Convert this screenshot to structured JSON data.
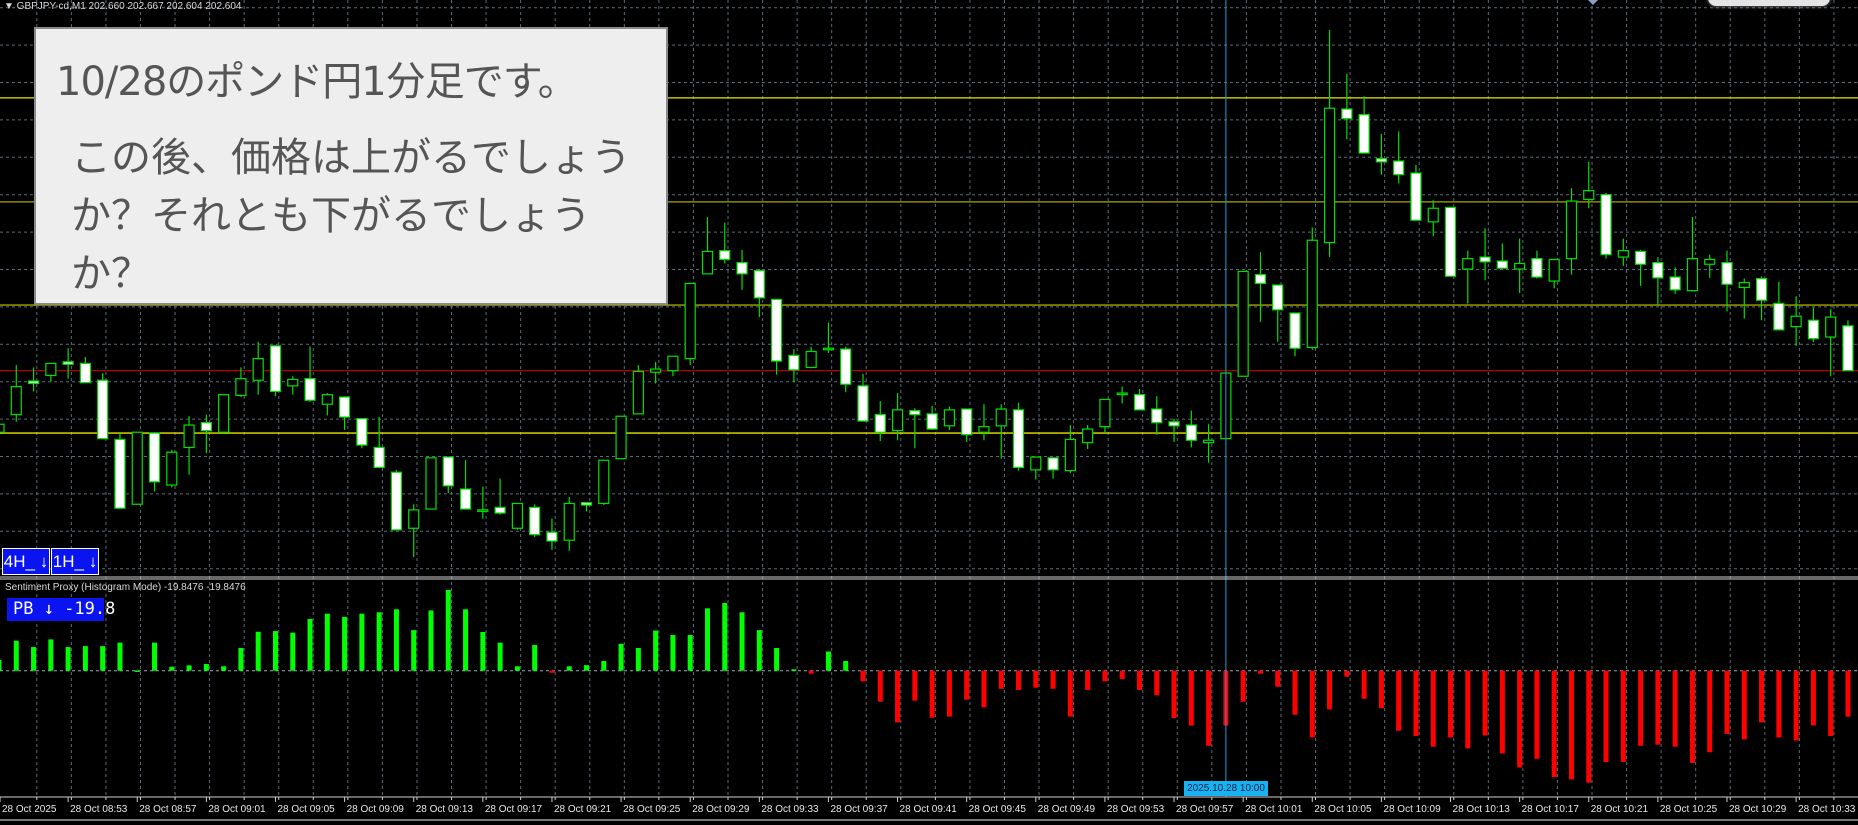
{
  "header": {
    "symbol_line": "▼ GBPJPY-cd,M1  202.660 202.667 202.604 202.604"
  },
  "question_box": {
    "line1": "10/28のポンド円1分足です。",
    "line2": "この後、価格は上がるでしょうか？それとも下がるでしょうか？"
  },
  "timeframe_badges": [
    {
      "label": "4H_ ↓"
    },
    {
      "label": "1H_ ↓"
    }
  ],
  "indicator": {
    "title": "Sentiment Proxy (Histogram Mode) -19.8476 -19.8476",
    "badge": "PB ↓  -19.8"
  },
  "colors": {
    "background": "#000000",
    "grid": "#5b6b7b",
    "bull_outline": "#00e000",
    "bear_fill": "#ffffff",
    "hist_positive": "#00ff00",
    "hist_negative": "#ff0000",
    "cursor_line": "#1e9be0",
    "badge_blue": "#0a14f0"
  },
  "time_axis": {
    "labels": [
      "28 Oct 2025",
      "28 Oct 08:53",
      "28 Oct 08:57",
      "28 Oct 09:01",
      "28 Oct 09:05",
      "28 Oct 09:09",
      "28 Oct 09:13",
      "28 Oct 09:17",
      "28 Oct 09:21",
      "28 Oct 09:25",
      "28 Oct 09:29",
      "28 Oct 09:33",
      "28 Oct 09:37",
      "28 Oct 09:41",
      "28 Oct 09:45",
      "28 Oct 09:49",
      "28 Oct 09:53",
      "28 Oct 09:57",
      "28 Oct 10:01",
      "28 Oct 10:05",
      "28 Oct 10:09",
      "28 Oct 10:13",
      "28 Oct 10:17",
      "28 Oct 10:21",
      "28 Oct 10:25",
      "28 Oct 10:29",
      "28 Oct 10:33"
    ],
    "cursor_label": "2025.10.28 10:00",
    "cursor_time": "10:00"
  },
  "chart_data": [
    {
      "type": "candlestick",
      "symbol": "GBPJPY-cd",
      "timeframe": "M1",
      "date": "28 Oct 2025",
      "fields": [
        "time",
        "open",
        "high",
        "low",
        "close"
      ],
      "levels": [
        {
          "price": 202.945,
          "color": "#e8e800"
        },
        {
          "price": 202.815,
          "color": "#a8a800"
        },
        {
          "price": 202.686,
          "color": "#a8a800"
        },
        {
          "price": 202.526,
          "color": "#e8e800"
        },
        {
          "price": 202.604,
          "color": "#b00000"
        }
      ],
      "candles": [
        [
          "08:49",
          202.527,
          202.538,
          202.526,
          202.537
        ],
        [
          "08:50",
          202.549,
          202.611,
          202.54,
          202.584
        ],
        [
          "08:51",
          202.591,
          202.608,
          202.578,
          202.588
        ],
        [
          "08:52",
          202.598,
          202.613,
          202.59,
          202.613
        ],
        [
          "08:53",
          202.615,
          202.632,
          202.594,
          202.612
        ],
        [
          "08:54",
          202.613,
          202.621,
          202.589,
          202.589
        ],
        [
          "08:55",
          202.592,
          202.601,
          202.519,
          202.519
        ],
        [
          "08:56",
          202.518,
          202.526,
          202.432,
          202.432
        ],
        [
          "08:57",
          202.437,
          202.527,
          202.436,
          202.527
        ],
        [
          "08:58",
          202.526,
          202.527,
          202.453,
          202.465
        ],
        [
          "08:59",
          202.461,
          202.505,
          202.458,
          202.502
        ],
        [
          "09:00",
          202.508,
          202.547,
          202.474,
          202.536
        ],
        [
          "09:01",
          202.539,
          202.549,
          202.501,
          202.529
        ],
        [
          "09:02",
          202.527,
          202.574,
          202.527,
          202.574
        ],
        [
          "09:03",
          202.573,
          202.608,
          202.571,
          202.594
        ],
        [
          "09:04",
          202.592,
          202.64,
          202.574,
          202.619
        ],
        [
          "09:05",
          202.635,
          202.635,
          202.572,
          202.578
        ],
        [
          "09:06",
          202.585,
          202.597,
          202.574,
          202.593
        ],
        [
          "09:07",
          202.594,
          202.634,
          202.565,
          202.567
        ],
        [
          "09:08",
          202.562,
          202.576,
          202.548,
          202.574
        ],
        [
          "09:09",
          202.571,
          202.572,
          202.53,
          202.546
        ],
        [
          "09:10",
          202.544,
          202.544,
          202.507,
          202.511
        ],
        [
          "09:11",
          202.508,
          202.546,
          202.483,
          202.483
        ],
        [
          "09:12",
          202.477,
          202.48,
          202.405,
          202.405
        ],
        [
          "09:13",
          202.407,
          202.437,
          202.371,
          202.43
        ],
        [
          "09:14",
          202.431,
          202.495,
          202.431,
          202.495
        ],
        [
          "09:15",
          202.496,
          202.496,
          202.451,
          202.46
        ],
        [
          "09:16",
          202.456,
          202.492,
          202.431,
          202.431
        ],
        [
          "09:17",
          202.43,
          202.459,
          202.419,
          202.43
        ],
        [
          "09:18",
          202.433,
          202.469,
          202.424,
          202.426
        ],
        [
          "09:19",
          202.407,
          202.438,
          202.405,
          202.438
        ],
        [
          "09:20",
          202.433,
          202.437,
          202.396,
          202.399
        ],
        [
          "09:21",
          202.402,
          202.419,
          202.38,
          202.391
        ],
        [
          "09:22",
          202.392,
          202.446,
          202.379,
          202.438
        ],
        [
          "09:23",
          202.439,
          202.439,
          202.428,
          202.436
        ],
        [
          "09:24",
          202.438,
          202.492,
          202.436,
          202.492
        ],
        [
          "09:25",
          202.494,
          202.547,
          202.494,
          202.547
        ],
        [
          "09:26",
          202.55,
          202.611,
          202.55,
          202.603
        ],
        [
          "09:27",
          202.602,
          202.615,
          202.588,
          202.606
        ],
        [
          "09:28",
          202.604,
          202.622,
          202.597,
          202.622
        ],
        [
          "09:29",
          202.619,
          202.713,
          202.611,
          202.713
        ],
        [
          "09:30",
          202.725,
          202.796,
          202.725,
          202.753
        ],
        [
          "09:31",
          202.754,
          202.789,
          202.738,
          202.743
        ],
        [
          "09:32",
          202.739,
          202.755,
          202.705,
          202.725
        ],
        [
          "09:33",
          202.729,
          202.731,
          202.671,
          202.695
        ],
        [
          "09:34",
          202.693,
          202.693,
          202.599,
          202.616
        ],
        [
          "09:35",
          202.623,
          202.631,
          202.59,
          202.605
        ],
        [
          "09:36",
          202.608,
          202.634,
          202.607,
          202.628
        ],
        [
          "09:37",
          202.632,
          202.664,
          202.626,
          202.632
        ],
        [
          "09:38",
          202.631,
          202.634,
          202.577,
          202.587
        ],
        [
          "09:39",
          202.585,
          202.6,
          202.541,
          202.541
        ],
        [
          "09:40",
          202.549,
          202.566,
          202.516,
          202.527
        ],
        [
          "09:41",
          202.529,
          202.576,
          202.517,
          202.555
        ],
        [
          "09:42",
          202.554,
          202.557,
          202.507,
          202.549
        ],
        [
          "09:43",
          202.55,
          202.56,
          202.53,
          202.531
        ],
        [
          "09:44",
          202.535,
          202.559,
          202.53,
          202.555
        ],
        [
          "09:45",
          202.556,
          202.556,
          202.515,
          202.524
        ],
        [
          "09:46",
          202.527,
          202.562,
          202.517,
          202.534
        ],
        [
          "09:47",
          202.535,
          202.562,
          202.494,
          202.556
        ],
        [
          "09:48",
          202.555,
          202.564,
          202.479,
          202.483
        ],
        [
          "09:49",
          202.48,
          202.496,
          202.468,
          202.496
        ],
        [
          "09:50",
          202.495,
          202.495,
          202.469,
          202.48
        ],
        [
          "09:51",
          202.479,
          202.536,
          202.476,
          202.518
        ],
        [
          "09:52",
          202.514,
          202.536,
          202.506,
          202.531
        ],
        [
          "09:53",
          202.534,
          202.568,
          202.526,
          202.568
        ],
        [
          "09:54",
          202.576,
          202.584,
          202.563,
          202.576
        ],
        [
          "09:55",
          202.574,
          202.581,
          202.555,
          202.555
        ],
        [
          "09:56",
          202.556,
          202.572,
          202.524,
          202.539
        ],
        [
          "09:57",
          202.54,
          202.544,
          202.515,
          202.535
        ],
        [
          "09:58",
          202.536,
          202.554,
          202.508,
          202.517
        ],
        [
          "09:59",
          202.514,
          202.537,
          202.489,
          202.517
        ],
        [
          "10:00",
          202.519,
          202.601,
          202.519,
          202.601
        ],
        [
          "10:01",
          202.597,
          202.728,
          202.597,
          202.728
        ],
        [
          "10:02",
          202.724,
          202.752,
          202.665,
          202.713
        ],
        [
          "10:03",
          202.711,
          202.711,
          202.64,
          202.68
        ],
        [
          "10:04",
          202.676,
          202.676,
          202.622,
          202.632
        ],
        [
          "10:05",
          202.633,
          202.783,
          202.63,
          202.767
        ],
        [
          "10:06",
          202.764,
          203.03,
          202.746,
          202.932
        ],
        [
          "10:07",
          202.931,
          202.975,
          202.893,
          202.919
        ],
        [
          "10:08",
          202.924,
          202.947,
          202.876,
          202.876
        ],
        [
          "10:09",
          202.869,
          202.9,
          202.849,
          202.865
        ],
        [
          "10:10",
          202.866,
          202.903,
          202.838,
          202.849
        ],
        [
          "10:11",
          202.851,
          202.861,
          202.792,
          202.792
        ],
        [
          "10:12",
          202.79,
          202.817,
          202.772,
          202.807
        ],
        [
          "10:13",
          202.808,
          202.808,
          202.722,
          202.722
        ],
        [
          "10:14",
          202.731,
          202.754,
          202.688,
          202.744
        ],
        [
          "10:15",
          202.746,
          202.782,
          202.717,
          202.74
        ],
        [
          "10:16",
          202.741,
          202.763,
          202.732,
          202.732
        ],
        [
          "10:17",
          202.731,
          202.769,
          202.701,
          202.738
        ],
        [
          "10:18",
          202.744,
          202.754,
          202.719,
          202.721
        ],
        [
          "10:19",
          202.716,
          202.743,
          202.707,
          202.743
        ],
        [
          "10:20",
          202.744,
          202.832,
          202.724,
          202.816
        ],
        [
          "10:21",
          202.818,
          202.865,
          202.807,
          202.829
        ],
        [
          "10:22",
          202.824,
          202.826,
          202.744,
          202.749
        ],
        [
          "10:23",
          202.746,
          202.769,
          202.735,
          202.754
        ],
        [
          "10:24",
          202.753,
          202.755,
          202.71,
          202.737
        ],
        [
          "10:25",
          202.739,
          202.746,
          202.686,
          202.72
        ],
        [
          "10:26",
          202.721,
          202.733,
          202.7,
          202.705
        ],
        [
          "10:27",
          202.704,
          202.796,
          202.703,
          202.744
        ],
        [
          "10:28",
          202.737,
          202.749,
          202.72,
          202.743
        ],
        [
          "10:29",
          202.739,
          202.754,
          202.678,
          202.712
        ],
        [
          "10:30",
          202.708,
          202.719,
          202.669,
          202.714
        ],
        [
          "10:31",
          202.719,
          202.722,
          202.667,
          202.692
        ],
        [
          "10:32",
          202.688,
          202.715,
          202.655,
          202.655
        ],
        [
          "10:33",
          202.659,
          202.697,
          202.635,
          202.672
        ],
        [
          "10:34",
          202.667,
          202.683,
          202.64,
          202.644
        ],
        [
          "10:35",
          202.646,
          202.681,
          202.597,
          202.671
        ],
        [
          "10:36",
          202.66,
          202.667,
          202.604,
          202.604
        ]
      ]
    },
    {
      "type": "bar",
      "name": "Sentiment Proxy (Histogram Mode)",
      "x_from": "candles.time",
      "values": [
        4.6,
        12.9,
        10.2,
        13.5,
        10.2,
        10.6,
        10.6,
        12.1,
        0.1,
        12.1,
        1.7,
        2.3,
        2.9,
        1.9,
        9.8,
        16.8,
        17.1,
        16.4,
        22.3,
        24.6,
        23.2,
        24.6,
        25.2,
        26.5,
        17.5,
        26.0,
        34.8,
        26.5,
        16.7,
        12.1,
        1.9,
        11.1,
        -0.9,
        1.9,
        2.4,
        4.2,
        11.6,
        9.8,
        17.3,
        15.4,
        15.4,
        26.9,
        29.2,
        25.2,
        17.5,
        9.8,
        0.6,
        -1.3,
        8.3,
        4.2,
        -4.6,
        -13.4,
        -22.3,
        -12.9,
        -20.3,
        -19.8,
        -12.5,
        -15.8,
        -7.8,
        -8.3,
        -7.3,
        -7.8,
        -19.8,
        -8.3,
        -4.6,
        -3.6,
        -8.3,
        -10.6,
        -20.4,
        -23.7,
        -32.4,
        -23.7,
        -13.4,
        -1.3,
        -6.9,
        -19.0,
        -28.8,
        -16.7,
        -2.6,
        -12.1,
        -16.2,
        -25.9,
        -28.2,
        -32.8,
        -28.8,
        -33.5,
        -27.9,
        -35.7,
        -41.7,
        -38.0,
        -45.9,
        -46.9,
        -48.3,
        -39.4,
        -39.4,
        -32.4,
        -31.9,
        -32.8,
        -39.8,
        -35.2,
        -27.3,
        -29.6,
        -22.3,
        -28.8,
        -30.1,
        -23.6,
        -28.2,
        -19.8476
      ]
    }
  ]
}
